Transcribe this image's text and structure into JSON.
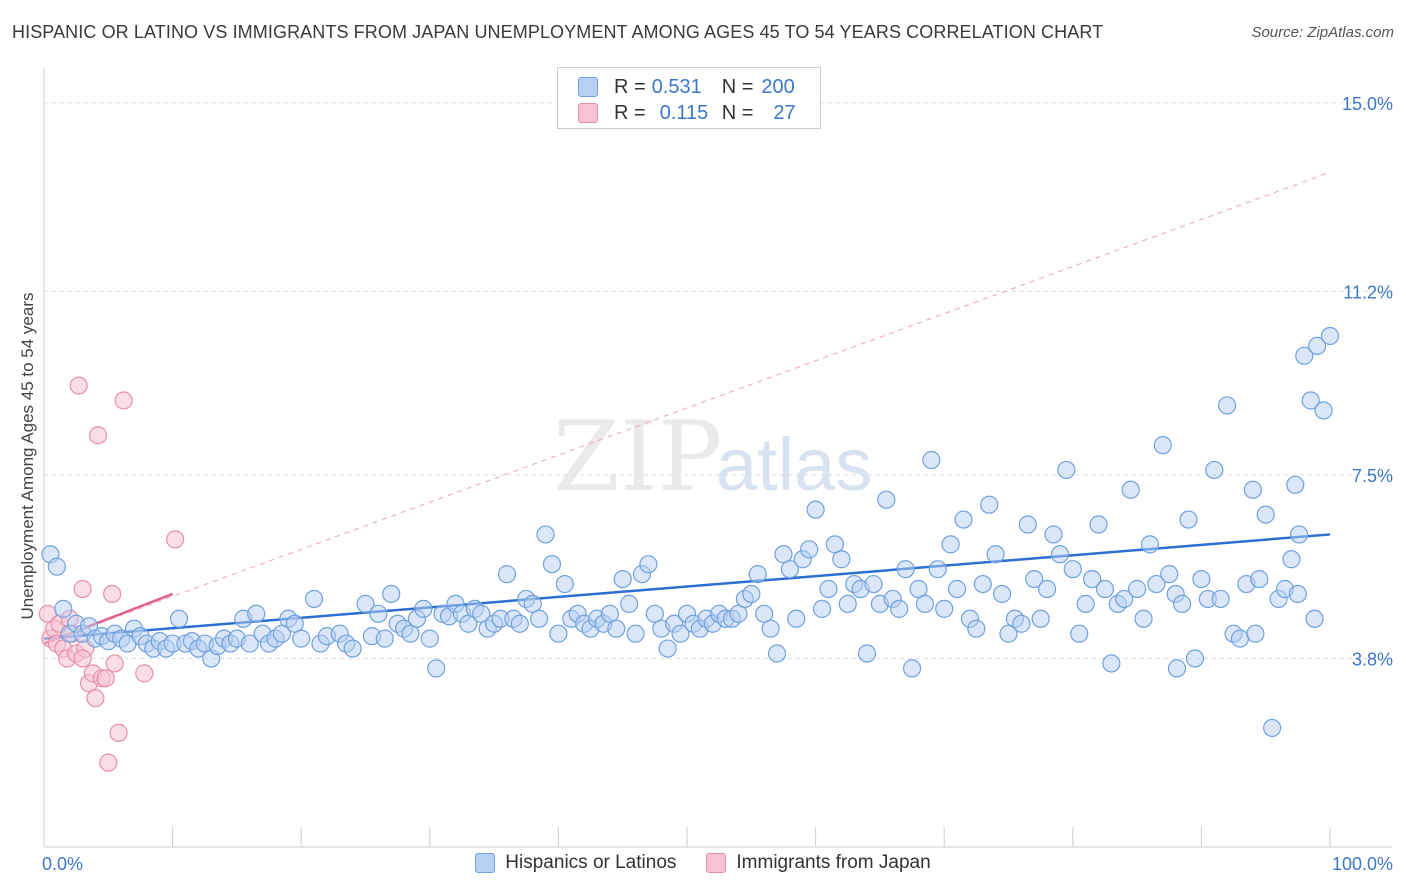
{
  "title": "HISPANIC OR LATINO VS IMMIGRANTS FROM JAPAN UNEMPLOYMENT AMONG AGES 45 TO 54 YEARS CORRELATION CHART",
  "source": "Source: ZipAtlas.com",
  "watermark": {
    "zip": "ZIP",
    "atlas": "atlas"
  },
  "colors": {
    "blue": "#6fa1e0",
    "blue_fill": "#b8d0f2",
    "blue_line": "#2a6fd1",
    "pink": "#e98faa",
    "pink_fill": "#f6c3d2",
    "pink_line": "#e0608a",
    "axis_text": "#3c78c8"
  },
  "stats_legend": [
    {
      "r_label": "R = ",
      "r_value": "0.531",
      "n_label": "N = ",
      "n_value": "200"
    },
    {
      "r_label": "R = ",
      "r_value": "0.115",
      "n_label": "N = ",
      "n_value": "27"
    }
  ],
  "chart_data": {
    "type": "scatter",
    "title": "HISPANIC OR LATINO VS IMMIGRANTS FROM JAPAN UNEMPLOYMENT AMONG AGES 45 TO 54 YEARS CORRELATION CHART",
    "xlabel": "",
    "ylabel": "Unemployment Among Ages 45 to 54 years",
    "xlim": [
      0,
      100
    ],
    "ylim": [
      0,
      15.5
    ],
    "x_tick_labels": [
      {
        "value": 0,
        "label": "0.0%"
      },
      {
        "value": 100,
        "label": "100.0%"
      }
    ],
    "y_ticks": [
      {
        "value": 3.8,
        "label": "3.8%"
      },
      {
        "value": 7.5,
        "label": "7.5%"
      },
      {
        "value": 11.2,
        "label": "11.2%"
      },
      {
        "value": 15.0,
        "label": "15.0%"
      }
    ],
    "legend_position": "bottom",
    "series": [
      {
        "name": "Hispanics or Latinos",
        "r": 0.531,
        "n": 200,
        "trend": {
          "x0": 0,
          "y0": 4.2,
          "x1": 100,
          "y1": 6.3
        },
        "points": [
          [
            0.5,
            5.9
          ],
          [
            1,
            5.65
          ],
          [
            1.5,
            4.8
          ],
          [
            2,
            4.3
          ],
          [
            2.5,
            4.5
          ],
          [
            3,
            4.3
          ],
          [
            3.5,
            4.45
          ],
          [
            4,
            4.2
          ],
          [
            4.5,
            4.25
          ],
          [
            5,
            4.15
          ],
          [
            5.5,
            4.3
          ],
          [
            6,
            4.2
          ],
          [
            6.5,
            4.1
          ],
          [
            7,
            4.4
          ],
          [
            7.5,
            4.25
          ],
          [
            8,
            4.1
          ],
          [
            8.5,
            4.0
          ],
          [
            9,
            4.15
          ],
          [
            9.5,
            4.0
          ],
          [
            10,
            4.1
          ],
          [
            10.5,
            4.6
          ],
          [
            11,
            4.1
          ],
          [
            11.5,
            4.15
          ],
          [
            12,
            4.0
          ],
          [
            12.5,
            4.1
          ],
          [
            13,
            3.8
          ],
          [
            13.5,
            4.05
          ],
          [
            14,
            4.2
          ],
          [
            14.5,
            4.1
          ],
          [
            15,
            4.2
          ],
          [
            15.5,
            4.6
          ],
          [
            16,
            4.1
          ],
          [
            16.5,
            4.7
          ],
          [
            17,
            4.3
          ],
          [
            17.5,
            4.1
          ],
          [
            18,
            4.2
          ],
          [
            18.5,
            4.3
          ],
          [
            19,
            4.6
          ],
          [
            19.5,
            4.5
          ],
          [
            20,
            4.2
          ],
          [
            21,
            5.0
          ],
          [
            21.5,
            4.1
          ],
          [
            22,
            4.25
          ],
          [
            23,
            4.3
          ],
          [
            23.5,
            4.1
          ],
          [
            24,
            4.0
          ],
          [
            25,
            4.9
          ],
          [
            25.5,
            4.25
          ],
          [
            26,
            4.7
          ],
          [
            26.5,
            4.2
          ],
          [
            27,
            5.1
          ],
          [
            27.5,
            4.5
          ],
          [
            28,
            4.4
          ],
          [
            28.5,
            4.3
          ],
          [
            29,
            4.6
          ],
          [
            29.5,
            4.8
          ],
          [
            30,
            4.2
          ],
          [
            30.5,
            3.6
          ],
          [
            31,
            4.7
          ],
          [
            31.5,
            4.65
          ],
          [
            32,
            4.9
          ],
          [
            32.5,
            4.7
          ],
          [
            33,
            4.5
          ],
          [
            33.5,
            4.8
          ],
          [
            34,
            4.7
          ],
          [
            34.5,
            4.4
          ],
          [
            35,
            4.5
          ],
          [
            35.5,
            4.6
          ],
          [
            36,
            5.5
          ],
          [
            36.5,
            4.6
          ],
          [
            37,
            4.5
          ],
          [
            37.5,
            5.0
          ],
          [
            38,
            4.9
          ],
          [
            38.5,
            4.6
          ],
          [
            39,
            6.3
          ],
          [
            39.5,
            5.7
          ],
          [
            40,
            4.3
          ],
          [
            40.5,
            5.3
          ],
          [
            41,
            4.6
          ],
          [
            41.5,
            4.7
          ],
          [
            42,
            4.5
          ],
          [
            42.5,
            4.4
          ],
          [
            43,
            4.6
          ],
          [
            43.5,
            4.5
          ],
          [
            44,
            4.7
          ],
          [
            44.5,
            4.4
          ],
          [
            45,
            5.4
          ],
          [
            45.5,
            4.9
          ],
          [
            46,
            4.3
          ],
          [
            46.5,
            5.5
          ],
          [
            47,
            5.7
          ],
          [
            47.5,
            4.7
          ],
          [
            48,
            4.4
          ],
          [
            48.5,
            4.0
          ],
          [
            49,
            4.5
          ],
          [
            49.5,
            4.3
          ],
          [
            50,
            4.7
          ],
          [
            50.5,
            4.5
          ],
          [
            51,
            4.4
          ],
          [
            51.5,
            4.6
          ],
          [
            52,
            4.5
          ],
          [
            52.5,
            4.7
          ],
          [
            53,
            4.6
          ],
          [
            53.5,
            4.6
          ],
          [
            54,
            4.7
          ],
          [
            54.5,
            5.0
          ],
          [
            55,
            5.1
          ],
          [
            55.5,
            5.5
          ],
          [
            56,
            4.7
          ],
          [
            56.5,
            4.4
          ],
          [
            57,
            3.9
          ],
          [
            57.5,
            5.9
          ],
          [
            58,
            5.6
          ],
          [
            58.5,
            4.6
          ],
          [
            59,
            5.8
          ],
          [
            59.5,
            6.0
          ],
          [
            60,
            6.8
          ],
          [
            60.5,
            4.8
          ],
          [
            61,
            5.2
          ],
          [
            61.5,
            6.1
          ],
          [
            62,
            5.8
          ],
          [
            62.5,
            4.9
          ],
          [
            63,
            5.3
          ],
          [
            63.5,
            5.2
          ],
          [
            64,
            3.9
          ],
          [
            64.5,
            5.3
          ],
          [
            65,
            4.9
          ],
          [
            65.5,
            7.0
          ],
          [
            66,
            5.0
          ],
          [
            66.5,
            4.8
          ],
          [
            67,
            5.6
          ],
          [
            67.5,
            3.6
          ],
          [
            68,
            5.2
          ],
          [
            68.5,
            4.9
          ],
          [
            69,
            7.8
          ],
          [
            69.5,
            5.6
          ],
          [
            70,
            4.8
          ],
          [
            70.5,
            6.1
          ],
          [
            71,
            5.2
          ],
          [
            71.5,
            6.6
          ],
          [
            72,
            4.6
          ],
          [
            72.5,
            4.4
          ],
          [
            73,
            5.3
          ],
          [
            73.5,
            6.9
          ],
          [
            74,
            5.9
          ],
          [
            74.5,
            5.1
          ],
          [
            75,
            4.3
          ],
          [
            75.5,
            4.6
          ],
          [
            76,
            4.5
          ],
          [
            76.5,
            6.5
          ],
          [
            77,
            5.4
          ],
          [
            77.5,
            4.6
          ],
          [
            78,
            5.2
          ],
          [
            78.5,
            6.3
          ],
          [
            79,
            5.9
          ],
          [
            79.5,
            7.6
          ],
          [
            80,
            5.6
          ],
          [
            80.5,
            4.3
          ],
          [
            81,
            4.9
          ],
          [
            81.5,
            5.4
          ],
          [
            82,
            6.5
          ],
          [
            82.5,
            5.2
          ],
          [
            83,
            3.7
          ],
          [
            83.5,
            4.9
          ],
          [
            84,
            5.0
          ],
          [
            84.5,
            7.2
          ],
          [
            85,
            5.2
          ],
          [
            85.5,
            4.6
          ],
          [
            86,
            6.1
          ],
          [
            86.5,
            5.3
          ],
          [
            87,
            8.1
          ],
          [
            87.5,
            5.5
          ],
          [
            88,
            5.1
          ],
          [
            88.5,
            4.9
          ],
          [
            89,
            6.6
          ],
          [
            89.5,
            3.8
          ],
          [
            90,
            5.4
          ],
          [
            90.5,
            5.0
          ],
          [
            91,
            7.6
          ],
          [
            91.5,
            5.0
          ],
          [
            92,
            8.9
          ],
          [
            92.5,
            4.3
          ],
          [
            93,
            4.2
          ],
          [
            93.5,
            5.3
          ],
          [
            94,
            7.2
          ],
          [
            94.5,
            5.4
          ],
          [
            95,
            6.7
          ],
          [
            95.5,
            2.4
          ],
          [
            96,
            5.0
          ],
          [
            96.5,
            5.2
          ],
          [
            97,
            5.8
          ],
          [
            97.5,
            5.1
          ],
          [
            98,
            9.9
          ],
          [
            98.5,
            9.0
          ],
          [
            99,
            10.1
          ],
          [
            99.5,
            8.8
          ],
          [
            97.3,
            7.3
          ],
          [
            97.6,
            6.3
          ],
          [
            100,
            10.3
          ],
          [
            98.8,
            4.6
          ],
          [
            94.2,
            4.3
          ],
          [
            88.1,
            3.6
          ]
        ]
      },
      {
        "name": "Immigrants from Japan",
        "r": 0.115,
        "n": 27,
        "trend": {
          "x0": 0,
          "y0": 4.1,
          "x1": 10,
          "y1": 5.1
        },
        "trend_extended": {
          "x0": 0,
          "y0": 4.1,
          "x1": 100,
          "y1": 13.6
        },
        "points": [
          [
            0.3,
            4.7
          ],
          [
            0.5,
            4.2
          ],
          [
            0.8,
            4.4
          ],
          [
            1.0,
            4.1
          ],
          [
            1.2,
            4.5
          ],
          [
            1.5,
            4.0
          ],
          [
            1.8,
            3.8
          ],
          [
            2.0,
            4.6
          ],
          [
            2.2,
            4.3
          ],
          [
            2.5,
            3.9
          ],
          [
            2.7,
            9.3
          ],
          [
            3.0,
            5.2
          ],
          [
            3.2,
            4.0
          ],
          [
            3.5,
            3.3
          ],
          [
            3.8,
            3.5
          ],
          [
            4.0,
            3.0
          ],
          [
            4.2,
            8.3
          ],
          [
            4.5,
            3.4
          ],
          [
            4.8,
            3.4
          ],
          [
            5.0,
            1.7
          ],
          [
            5.3,
            5.1
          ],
          [
            5.5,
            3.7
          ],
          [
            5.8,
            2.3
          ],
          [
            6.2,
            9.0
          ],
          [
            7.8,
            3.5
          ],
          [
            10.2,
            6.2
          ],
          [
            3.0,
            3.8
          ]
        ]
      }
    ]
  }
}
